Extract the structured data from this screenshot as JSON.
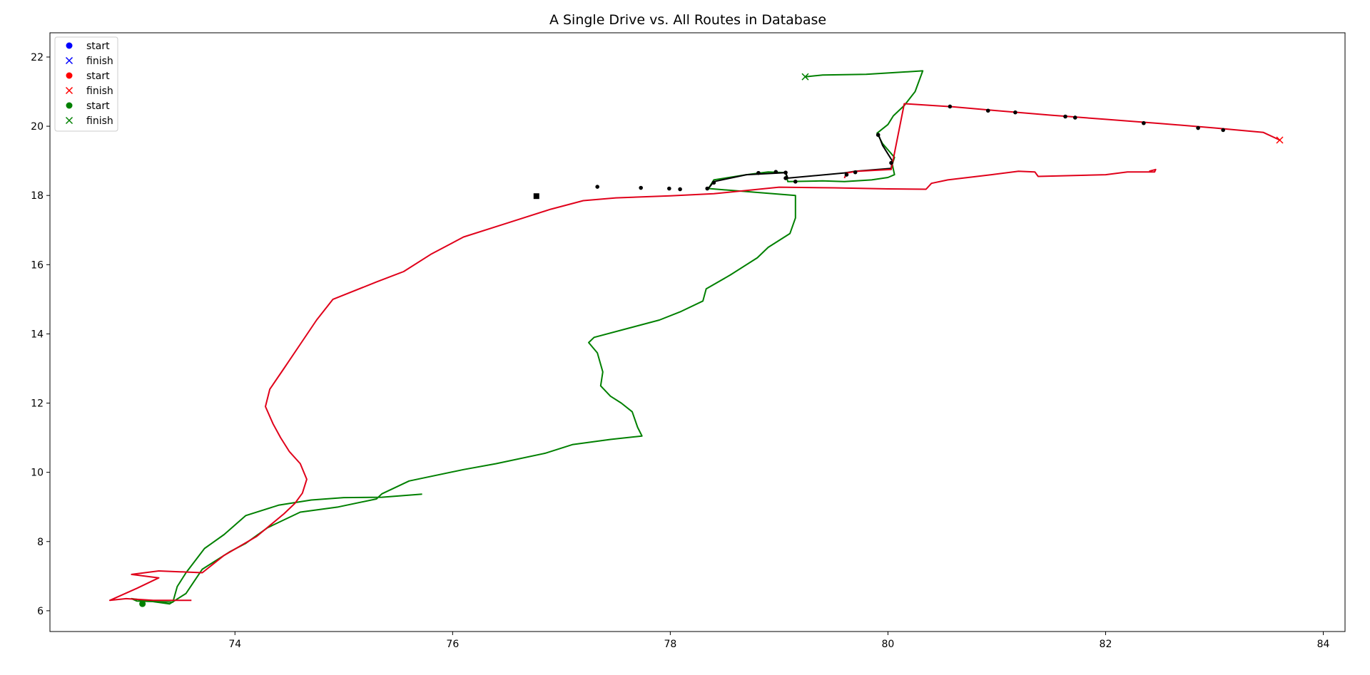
{
  "chart_data": {
    "type": "line",
    "title": "A Single Drive vs. All Routes in Database",
    "xlabel": "",
    "ylabel": "",
    "xlim": [
      72.3,
      84.2
    ],
    "ylim": [
      5.4,
      22.7
    ],
    "xticks": [
      74,
      76,
      78,
      80,
      82,
      84
    ],
    "yticks": [
      6,
      8,
      10,
      12,
      14,
      16,
      18,
      20,
      22
    ],
    "grid": false,
    "legend_position": "top-left",
    "legend": [
      {
        "label": "start",
        "marker": "circle",
        "color": "#0000ff"
      },
      {
        "label": "finish",
        "marker": "x",
        "color": "#0000ff"
      },
      {
        "label": "start",
        "marker": "circle",
        "color": "#ff0000"
      },
      {
        "label": "finish",
        "marker": "x",
        "color": "#ff0000"
      },
      {
        "label": "start",
        "marker": "circle",
        "color": "#008000"
      },
      {
        "label": "finish",
        "marker": "x",
        "color": "#008000"
      }
    ],
    "series": [
      {
        "color": "#008000",
        "points": [
          [
            75.72,
            9.37
          ],
          [
            75.35,
            9.28
          ],
          [
            75.0,
            9.27
          ],
          [
            74.7,
            9.2
          ],
          [
            74.4,
            9.05
          ],
          [
            74.1,
            8.75
          ],
          [
            73.9,
            8.2
          ],
          [
            73.72,
            7.8
          ],
          [
            73.55,
            7.1
          ],
          [
            73.47,
            6.7
          ],
          [
            73.43,
            6.25
          ],
          [
            73.1,
            6.28
          ],
          [
            73.05,
            6.35
          ],
          [
            73.4,
            6.2
          ],
          [
            73.55,
            6.5
          ],
          [
            73.7,
            7.2
          ],
          [
            73.95,
            7.7
          ],
          [
            74.1,
            7.95
          ],
          [
            74.3,
            8.4
          ],
          [
            74.6,
            8.85
          ],
          [
            74.95,
            9.0
          ],
          [
            75.3,
            9.23
          ],
          [
            75.35,
            9.38
          ],
          [
            75.6,
            9.75
          ],
          [
            76.1,
            10.08
          ],
          [
            76.4,
            10.25
          ],
          [
            76.85,
            10.55
          ],
          [
            77.1,
            10.8
          ],
          [
            77.45,
            10.95
          ],
          [
            77.74,
            11.05
          ],
          [
            77.7,
            11.3
          ],
          [
            77.65,
            11.75
          ],
          [
            77.55,
            12.0
          ],
          [
            77.45,
            12.2
          ],
          [
            77.36,
            12.5
          ],
          [
            77.38,
            12.9
          ],
          [
            77.33,
            13.45
          ],
          [
            77.25,
            13.75
          ],
          [
            77.3,
            13.9
          ],
          [
            77.6,
            14.15
          ],
          [
            77.9,
            14.4
          ],
          [
            78.1,
            14.65
          ],
          [
            78.3,
            14.95
          ],
          [
            78.33,
            15.3
          ],
          [
            78.55,
            15.7
          ],
          [
            78.8,
            16.2
          ],
          [
            78.9,
            16.5
          ],
          [
            79.1,
            16.9
          ],
          [
            79.15,
            17.35
          ],
          [
            79.15,
            18.0
          ],
          [
            78.75,
            18.1
          ],
          [
            78.35,
            18.2
          ],
          [
            78.4,
            18.45
          ],
          [
            78.7,
            18.6
          ],
          [
            78.9,
            18.68
          ],
          [
            79.06,
            18.66
          ],
          [
            79.08,
            18.4
          ],
          [
            79.4,
            18.42
          ],
          [
            79.6,
            18.4
          ],
          [
            79.85,
            18.45
          ],
          [
            80.0,
            18.52
          ],
          [
            80.06,
            18.6
          ],
          [
            80.04,
            18.9
          ],
          [
            80.06,
            19.1
          ],
          [
            79.95,
            19.5
          ],
          [
            79.9,
            19.8
          ],
          [
            80.0,
            20.05
          ],
          [
            80.05,
            20.3
          ],
          [
            80.15,
            20.6
          ],
          [
            80.25,
            21.0
          ],
          [
            80.32,
            21.6
          ],
          [
            79.8,
            21.5
          ],
          [
            79.4,
            21.48
          ],
          [
            79.24,
            21.43
          ]
        ]
      },
      {
        "color": "#000000",
        "points": [
          [
            78.35,
            18.2
          ],
          [
            78.4,
            18.4
          ],
          [
            78.7,
            18.6
          ],
          [
            79.06,
            18.66
          ],
          [
            79.08,
            18.5
          ],
          [
            79.6,
            18.65
          ],
          [
            79.7,
            18.7
          ],
          [
            80.03,
            18.78
          ],
          [
            80.04,
            19.0
          ],
          [
            79.95,
            19.45
          ],
          [
            79.91,
            19.78
          ]
        ]
      },
      {
        "color": "#e0001a",
        "points": [
          [
            73.6,
            6.3
          ],
          [
            73.25,
            6.3
          ],
          [
            73.0,
            6.35
          ],
          [
            72.85,
            6.3
          ],
          [
            73.1,
            6.65
          ],
          [
            73.3,
            6.95
          ],
          [
            73.05,
            7.05
          ],
          [
            73.3,
            7.15
          ],
          [
            73.7,
            7.1
          ],
          [
            73.9,
            7.6
          ],
          [
            74.2,
            8.15
          ],
          [
            74.45,
            8.8
          ],
          [
            74.55,
            9.1
          ],
          [
            74.62,
            9.4
          ],
          [
            74.66,
            9.8
          ],
          [
            74.6,
            10.25
          ],
          [
            74.5,
            10.6
          ],
          [
            74.42,
            11.0
          ],
          [
            74.35,
            11.4
          ],
          [
            74.28,
            11.9
          ],
          [
            74.32,
            12.4
          ],
          [
            74.45,
            13.0
          ],
          [
            74.6,
            13.7
          ],
          [
            74.75,
            14.4
          ],
          [
            74.9,
            15.0
          ],
          [
            75.3,
            15.5
          ],
          [
            75.55,
            15.8
          ],
          [
            75.8,
            16.3
          ],
          [
            76.1,
            16.8
          ],
          [
            76.5,
            17.2
          ],
          [
            76.9,
            17.6
          ],
          [
            77.2,
            17.85
          ],
          [
            77.5,
            17.93
          ],
          [
            78.0,
            17.99
          ],
          [
            78.4,
            18.05
          ],
          [
            79.0,
            18.24
          ],
          [
            79.5,
            18.22
          ],
          [
            80.0,
            18.19
          ],
          [
            80.35,
            18.18
          ],
          [
            80.4,
            18.35
          ],
          [
            80.55,
            18.45
          ],
          [
            80.95,
            18.6
          ],
          [
            81.2,
            18.7
          ],
          [
            81.35,
            18.68
          ],
          [
            81.38,
            18.55
          ],
          [
            82.0,
            18.6
          ],
          [
            82.2,
            18.68
          ],
          [
            82.45,
            18.68
          ],
          [
            82.46,
            18.75
          ],
          [
            82.4,
            18.7
          ]
        ]
      },
      {
        "color": "#e0001a",
        "points": [
          [
            79.6,
            18.5
          ],
          [
            79.62,
            18.65
          ],
          [
            79.72,
            18.7
          ],
          [
            80.03,
            18.75
          ],
          [
            80.15,
            20.65
          ],
          [
            80.6,
            20.56
          ],
          [
            81.0,
            20.45
          ],
          [
            81.5,
            20.32
          ],
          [
            82.0,
            20.2
          ],
          [
            82.5,
            20.08
          ],
          [
            83.0,
            19.95
          ],
          [
            83.45,
            19.82
          ],
          [
            83.6,
            19.6
          ]
        ]
      }
    ],
    "markers": [
      {
        "type": "start",
        "color": "#008000",
        "x": 73.15,
        "y": 6.2
      },
      {
        "type": "finish",
        "color": "#008000",
        "x": 79.24,
        "y": 21.43
      },
      {
        "type": "finish",
        "color": "#ff0000",
        "x": 83.6,
        "y": 19.6
      },
      {
        "type": "square",
        "color": "#000000",
        "x": 76.77,
        "y": 17.98
      }
    ],
    "waypoints": [
      [
        77.33,
        18.25
      ],
      [
        77.73,
        18.22
      ],
      [
        77.99,
        18.2
      ],
      [
        78.09,
        18.18
      ],
      [
        78.34,
        18.2
      ],
      [
        78.4,
        18.37
      ],
      [
        78.81,
        18.65
      ],
      [
        78.97,
        18.68
      ],
      [
        79.06,
        18.66
      ],
      [
        79.06,
        18.5
      ],
      [
        79.15,
        18.4
      ],
      [
        79.62,
        18.6
      ],
      [
        79.7,
        18.67
      ],
      [
        80.03,
        18.94
      ],
      [
        79.91,
        19.75
      ],
      [
        80.57,
        20.57
      ],
      [
        80.92,
        20.45
      ],
      [
        81.17,
        20.4
      ],
      [
        81.63,
        20.28
      ],
      [
        81.72,
        20.25
      ],
      [
        82.35,
        20.09
      ],
      [
        82.85,
        19.95
      ],
      [
        83.08,
        19.89
      ]
    ]
  }
}
